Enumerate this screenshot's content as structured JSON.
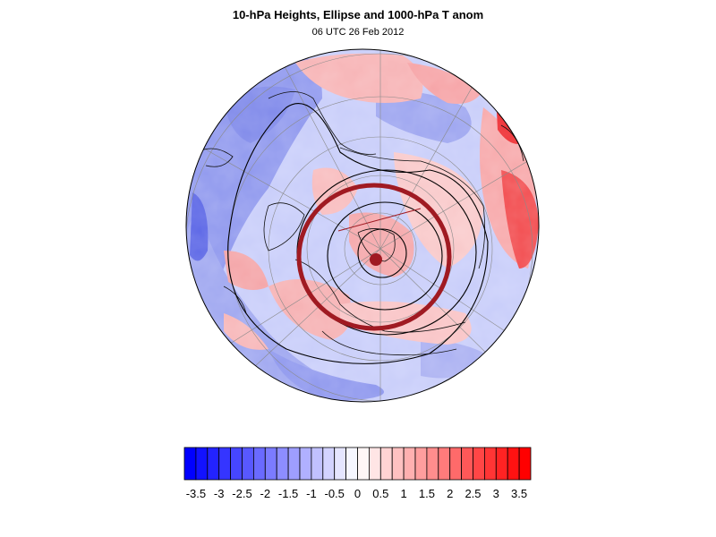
{
  "title": "10-hPa Heights, Ellipse and 1000-hPa T anom",
  "subtitle": "06 UTC 26 Feb 2012",
  "map": {
    "projection": "north-polar-stereographic",
    "field": "1000-hPa temperature anomaly",
    "overlays": [
      "10-hPa height contours",
      "vortex ellipse",
      "vortex centroid"
    ],
    "ellipse_color": "#a01a22"
  },
  "colorbar": {
    "min": -3.75,
    "max": 3.75,
    "step": 0.25,
    "low_color": "#0000ff",
    "mid_color": "#ffffff",
    "high_color": "#ff0000",
    "tick_labels": [
      "-3.5",
      "-3",
      "-2.5",
      "-2",
      "-1.5",
      "-1",
      "-0.5",
      "0",
      "0.5",
      "1",
      "1.5",
      "2",
      "2.5",
      "3",
      "3.5"
    ],
    "tick_values": [
      -3.5,
      -3,
      -2.5,
      -2,
      -1.5,
      -1,
      -0.5,
      0,
      0.5,
      1,
      1.5,
      2,
      2.5,
      3,
      3.5
    ]
  }
}
